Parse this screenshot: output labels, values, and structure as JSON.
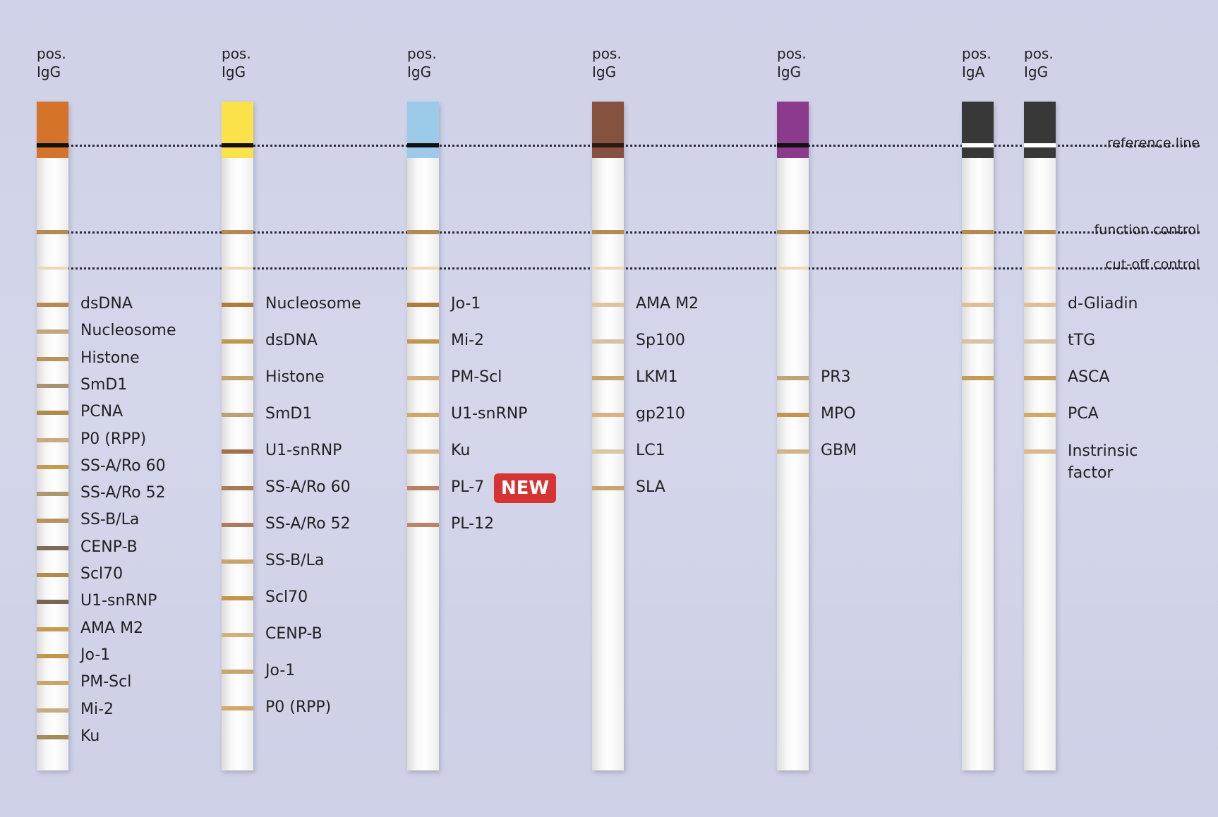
{
  "controls": [
    {
      "key": "reference",
      "label": "reference line"
    },
    {
      "key": "function",
      "label": "function control"
    },
    {
      "key": "cutoff",
      "label": "cut-off control"
    }
  ],
  "badge": {
    "text": "NEW"
  },
  "strips": [
    {
      "header": [
        "pos.",
        "IgG"
      ],
      "head_color": "#d6732a",
      "ref_line_color": "#111111",
      "label_spacing": "tight",
      "antigens": [
        {
          "name": "dsDNA",
          "color": "#b88a52"
        },
        {
          "name": "Nucleosome",
          "color": "#c3a47c"
        },
        {
          "name": "Histone",
          "color": "#b8935a"
        },
        {
          "name": "SmD1",
          "color": "#a89270"
        },
        {
          "name": "PCNA",
          "color": "#b08a48"
        },
        {
          "name": "P0 (RPP)",
          "color": "#c9aa82"
        },
        {
          "name": "SS-A/Ro 60",
          "color": "#c59a55"
        },
        {
          "name": "SS-A/Ro 52",
          "color": "#ad976e"
        },
        {
          "name": "SS-B/La",
          "color": "#b8935a"
        },
        {
          "name": "CENP-B",
          "color": "#7d6a58"
        },
        {
          "name": "Scl70",
          "color": "#b48a4a"
        },
        {
          "name": "U1-snRNP",
          "color": "#7a6553"
        },
        {
          "name": "AMA M2",
          "color": "#c59a55"
        },
        {
          "name": "Jo-1",
          "color": "#c39650"
        },
        {
          "name": "PM-Scl",
          "color": "#c9a46e"
        },
        {
          "name": "Mi-2",
          "color": "#c7ab87"
        },
        {
          "name": "Ku",
          "color": "#a58a5e"
        }
      ]
    },
    {
      "header": [
        "pos.",
        "IgG"
      ],
      "head_color": "#fbe14a",
      "ref_line_color": "#111111",
      "label_spacing": "wide",
      "antigens": [
        {
          "name": "Nucleosome",
          "color": "#b07a3c"
        },
        {
          "name": "dsDNA",
          "color": "#c39650"
        },
        {
          "name": "Histone",
          "color": "#c4a06a"
        },
        {
          "name": "SmD1",
          "color": "#bca078"
        },
        {
          "name": "U1-snRNP",
          "color": "#a07050"
        },
        {
          "name": "SS-A/Ro 60",
          "color": "#aa7a55"
        },
        {
          "name": "SS-A/Ro 52",
          "color": "#b07a60"
        },
        {
          "name": "SS-B/La",
          "color": "#c9a46e"
        },
        {
          "name": "Scl70",
          "color": "#c39650"
        },
        {
          "name": "CENP-B",
          "color": "#d2b07a"
        },
        {
          "name": "Jo-1",
          "color": "#c9a46e"
        },
        {
          "name": "P0 (RPP)",
          "color": "#d0a868"
        }
      ]
    },
    {
      "header": [
        "pos.",
        "IgG"
      ],
      "head_color": "#9ccbea",
      "ref_line_color": "#111111",
      "label_spacing": "wide",
      "antigens": [
        {
          "name": "Jo-1",
          "color": "#b07a3c"
        },
        {
          "name": "Mi-2",
          "color": "#c39650"
        },
        {
          "name": "PM-Scl",
          "color": "#d2ad7c"
        },
        {
          "name": "U1-snRNP",
          "color": "#cfa86e"
        },
        {
          "name": "Ku",
          "color": "#d4b486"
        },
        {
          "name": "PL-7",
          "color": "#b88060",
          "badge": true
        },
        {
          "name": "PL-12",
          "color": "#bb8468"
        }
      ]
    },
    {
      "header": [
        "pos.",
        "IgG"
      ],
      "head_color": "#87513f",
      "ref_line_color": "#2a1a14",
      "label_spacing": "wide",
      "antigens": [
        {
          "name": "AMA M2",
          "color": "#dfc4a2"
        },
        {
          "name": "Sp100",
          "color": "#d7c0a4"
        },
        {
          "name": "LKM1",
          "color": "#c9a46e"
        },
        {
          "name": "gp210",
          "color": "#d4b486"
        },
        {
          "name": "LC1",
          "color": "#dcc4a6"
        },
        {
          "name": "SLA",
          "color": "#c9a46e"
        }
      ]
    },
    {
      "header": [
        "pos.",
        "IgG"
      ],
      "head_color": "#8c3a8c",
      "ref_line_color": "#111111",
      "label_spacing": "wide",
      "offset": 2,
      "antigens": [
        {
          "name": "PR3",
          "color": "#bfa47a"
        },
        {
          "name": "MPO",
          "color": "#c39650"
        },
        {
          "name": "GBM",
          "color": "#d2b48a"
        }
      ]
    },
    {
      "header": [
        "pos.",
        "IgA"
      ],
      "head_color": "#383838",
      "ref_line_color": "#ffffff",
      "label_spacing": "wide",
      "antigens": [
        {
          "name": "",
          "color": "#dfbf98"
        },
        {
          "name": "",
          "color": "#d8c2a4"
        },
        {
          "name": "",
          "color": "#c59a55"
        }
      ]
    },
    {
      "header": [
        "pos.",
        "IgG"
      ],
      "head_color": "#383838",
      "ref_line_color": "#ffffff",
      "label_spacing": "wide",
      "antigens": [
        {
          "name": "d-Gliadin",
          "color": "#dfbf98"
        },
        {
          "name": "tTG",
          "color": "#d8c2a4"
        },
        {
          "name": "ASCA",
          "color": "#c59a55"
        },
        {
          "name": "PCA",
          "color": "#d0a868"
        },
        {
          "name": "Instrinsic\nfactor",
          "color": "#d8b890"
        }
      ]
    }
  ],
  "control_band_colors": {
    "function": "#b58a52",
    "cutoff": "#ecd9b4"
  }
}
